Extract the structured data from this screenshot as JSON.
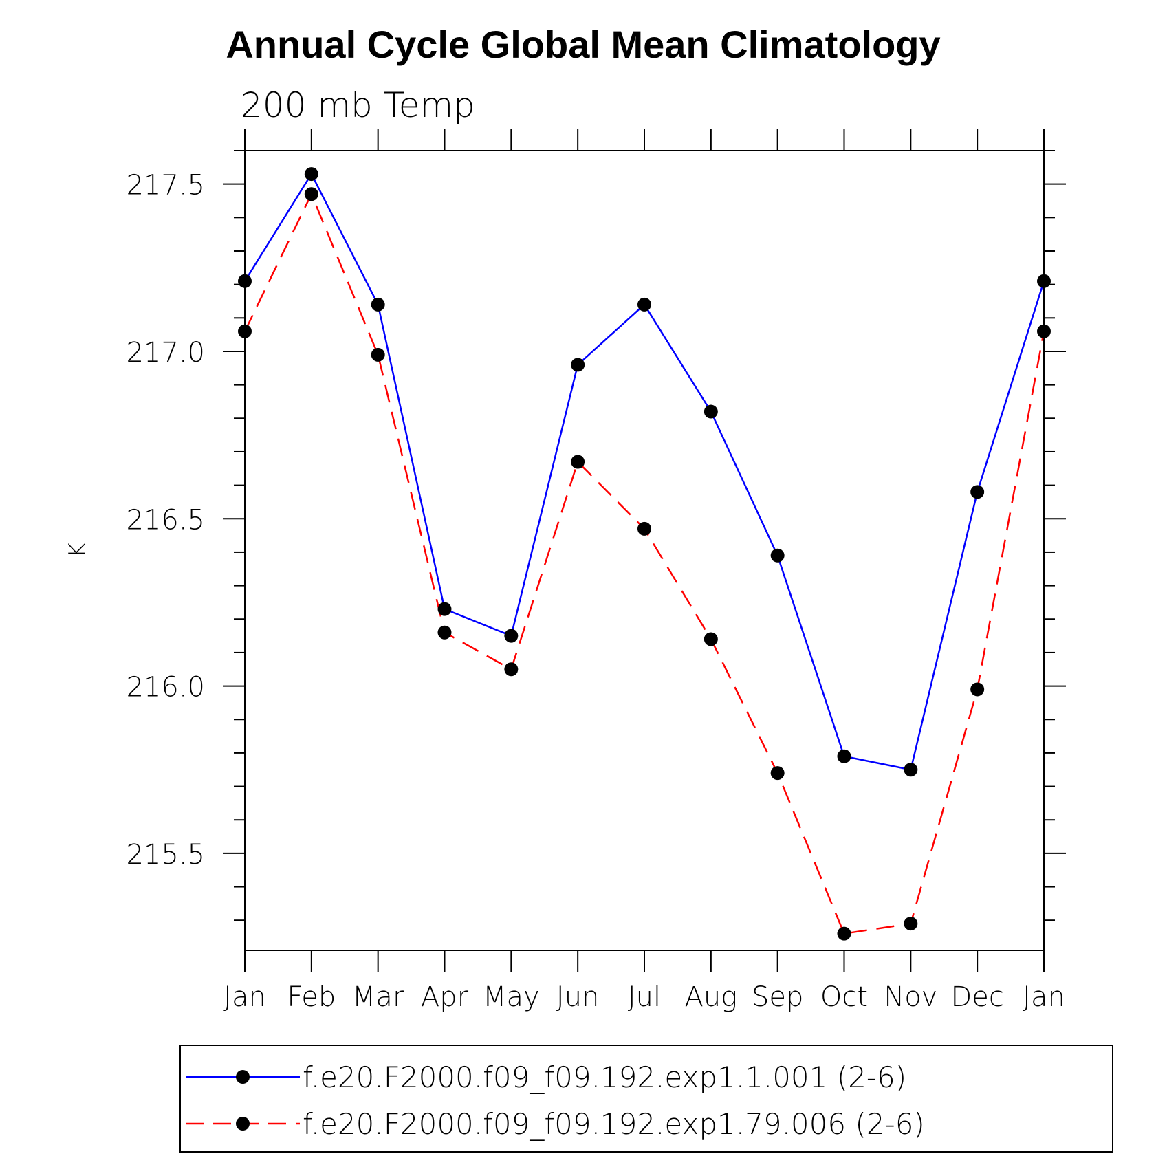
{
  "chart_data": {
    "type": "line",
    "title": "Annual Cycle Global Mean Climatology",
    "subtitle": "200 mb Temp",
    "xlabel": "",
    "ylabel": "K",
    "categories": [
      "Jan",
      "Feb",
      "Mar",
      "Apr",
      "May",
      "Jun",
      "Jul",
      "Aug",
      "Sep",
      "Oct",
      "Nov",
      "Dec",
      "Jan"
    ],
    "ylim": [
      215.21,
      217.6
    ],
    "y_major_ticks": [
      215.5,
      216.0,
      216.5,
      217.0,
      217.5
    ],
    "y_tick_labels": [
      "215.5",
      "216.0",
      "216.5",
      "217.0",
      "217.5"
    ],
    "y_minor_step": 0.1,
    "grid": false,
    "legend_position": "bottom",
    "series": [
      {
        "name": "f.e20.F2000.f09_f09.192.exp1.1.001 (2-6)",
        "color": "#0000ff",
        "dashed": false,
        "marker": "filled-circle",
        "values": [
          217.21,
          217.53,
          217.14,
          216.23,
          216.15,
          216.96,
          217.14,
          216.82,
          216.39,
          215.79,
          215.75,
          216.58,
          217.21
        ]
      },
      {
        "name": "f.e20.F2000.f09_f09.192.exp1.79.006 (2-6)",
        "color": "#ff0000",
        "dashed": true,
        "marker": "filled-circle",
        "values": [
          217.06,
          217.47,
          216.99,
          216.16,
          216.05,
          216.67,
          216.47,
          216.14,
          215.74,
          215.26,
          215.29,
          215.99,
          217.06
        ]
      }
    ]
  }
}
